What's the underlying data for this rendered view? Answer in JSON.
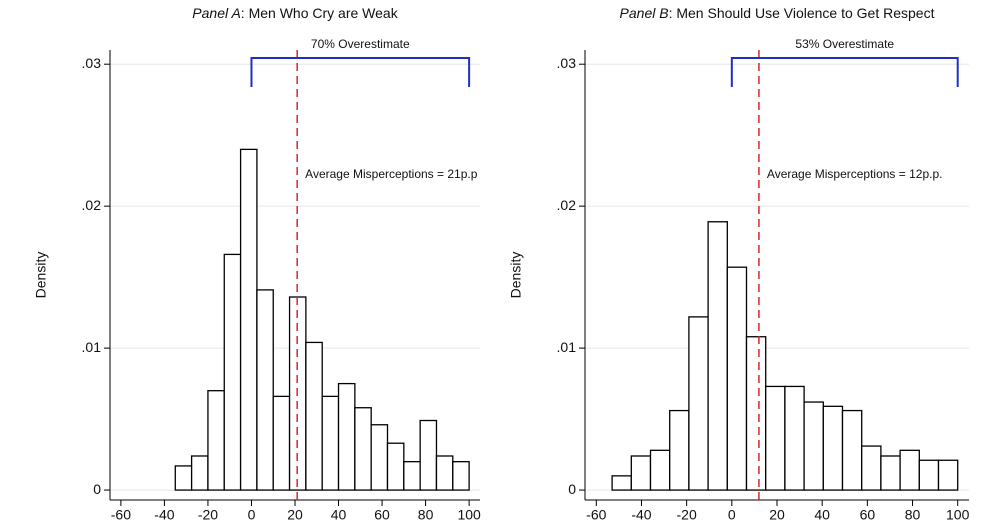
{
  "chart_data": [
    {
      "type": "histogram",
      "title": [
        "Panel A",
        ": Men Who Cry are Weak"
      ],
      "ylabel": "Density",
      "bins": [
        -35,
        -27.5,
        -20,
        -12.5,
        -5,
        2.5,
        10,
        17.5,
        25,
        32.5,
        40,
        47.5,
        55,
        62.5,
        70,
        77.5,
        85,
        92.5,
        100
      ],
      "values": [
        0.0017,
        0.0024,
        0.007,
        0.0166,
        0.024,
        0.0141,
        0.0066,
        0.0136,
        0.0104,
        0.0066,
        0.0075,
        0.0058,
        0.0046,
        0.0033,
        0.002,
        0.0049,
        0.0024,
        0.002
      ],
      "xlim": [
        -65,
        105
      ],
      "xticks": [
        -60,
        -40,
        -20,
        0,
        20,
        40,
        60,
        80,
        100
      ],
      "ylim": [
        -0.0007,
        0.031
      ],
      "yticks": [
        0,
        {
          "value": 0.01,
          "label": ".01"
        },
        {
          "value": 0.02,
          "label": ".02"
        },
        {
          "value": 0.03,
          "label": ".03"
        }
      ],
      "grid": true,
      "color": "#ffffff",
      "mean_line": {
        "x": 21,
        "label": "Average Misperceptions = 21p.p",
        "color": "#d62728"
      },
      "bracket": {
        "x": [
          0,
          100
        ],
        "label": "70% Overestimate",
        "color": "#1f2fc4"
      }
    },
    {
      "type": "histogram",
      "title": [
        "Panel B",
        ": Men Should Use Violence to Get Respect"
      ],
      "ylabel": "Density",
      "bins": [
        -53,
        -44.5,
        -36,
        -27.5,
        -19,
        -10.5,
        -2,
        6.5,
        15,
        23.5,
        32,
        40.5,
        49,
        57.5,
        66,
        74.5,
        83,
        91.5,
        100
      ],
      "values": [
        0.001,
        0.0024,
        0.0028,
        0.0056,
        0.0122,
        0.0189,
        0.0157,
        0.0108,
        0.0073,
        0.0073,
        0.0062,
        0.0059,
        0.0056,
        0.0031,
        0.0024,
        0.0028,
        0.0021,
        0.0021
      ],
      "xlim": [
        -65,
        105
      ],
      "xticks": [
        -60,
        -40,
        -20,
        0,
        20,
        40,
        60,
        80,
        100
      ],
      "ylim": [
        -0.0007,
        0.031
      ],
      "yticks": [
        0,
        {
          "value": 0.01,
          "label": ".01"
        },
        {
          "value": 0.02,
          "label": ".02"
        },
        {
          "value": 0.03,
          "label": ".03"
        }
      ],
      "grid": true,
      "color": "#ffffff",
      "mean_line": {
        "x": 12,
        "label": "Average Misperceptions = 12p.p.",
        "color": "#d62728"
      },
      "bracket": {
        "x": [
          0,
          100
        ],
        "label": "53% Overestimate",
        "color": "#1f2fc4"
      }
    }
  ]
}
